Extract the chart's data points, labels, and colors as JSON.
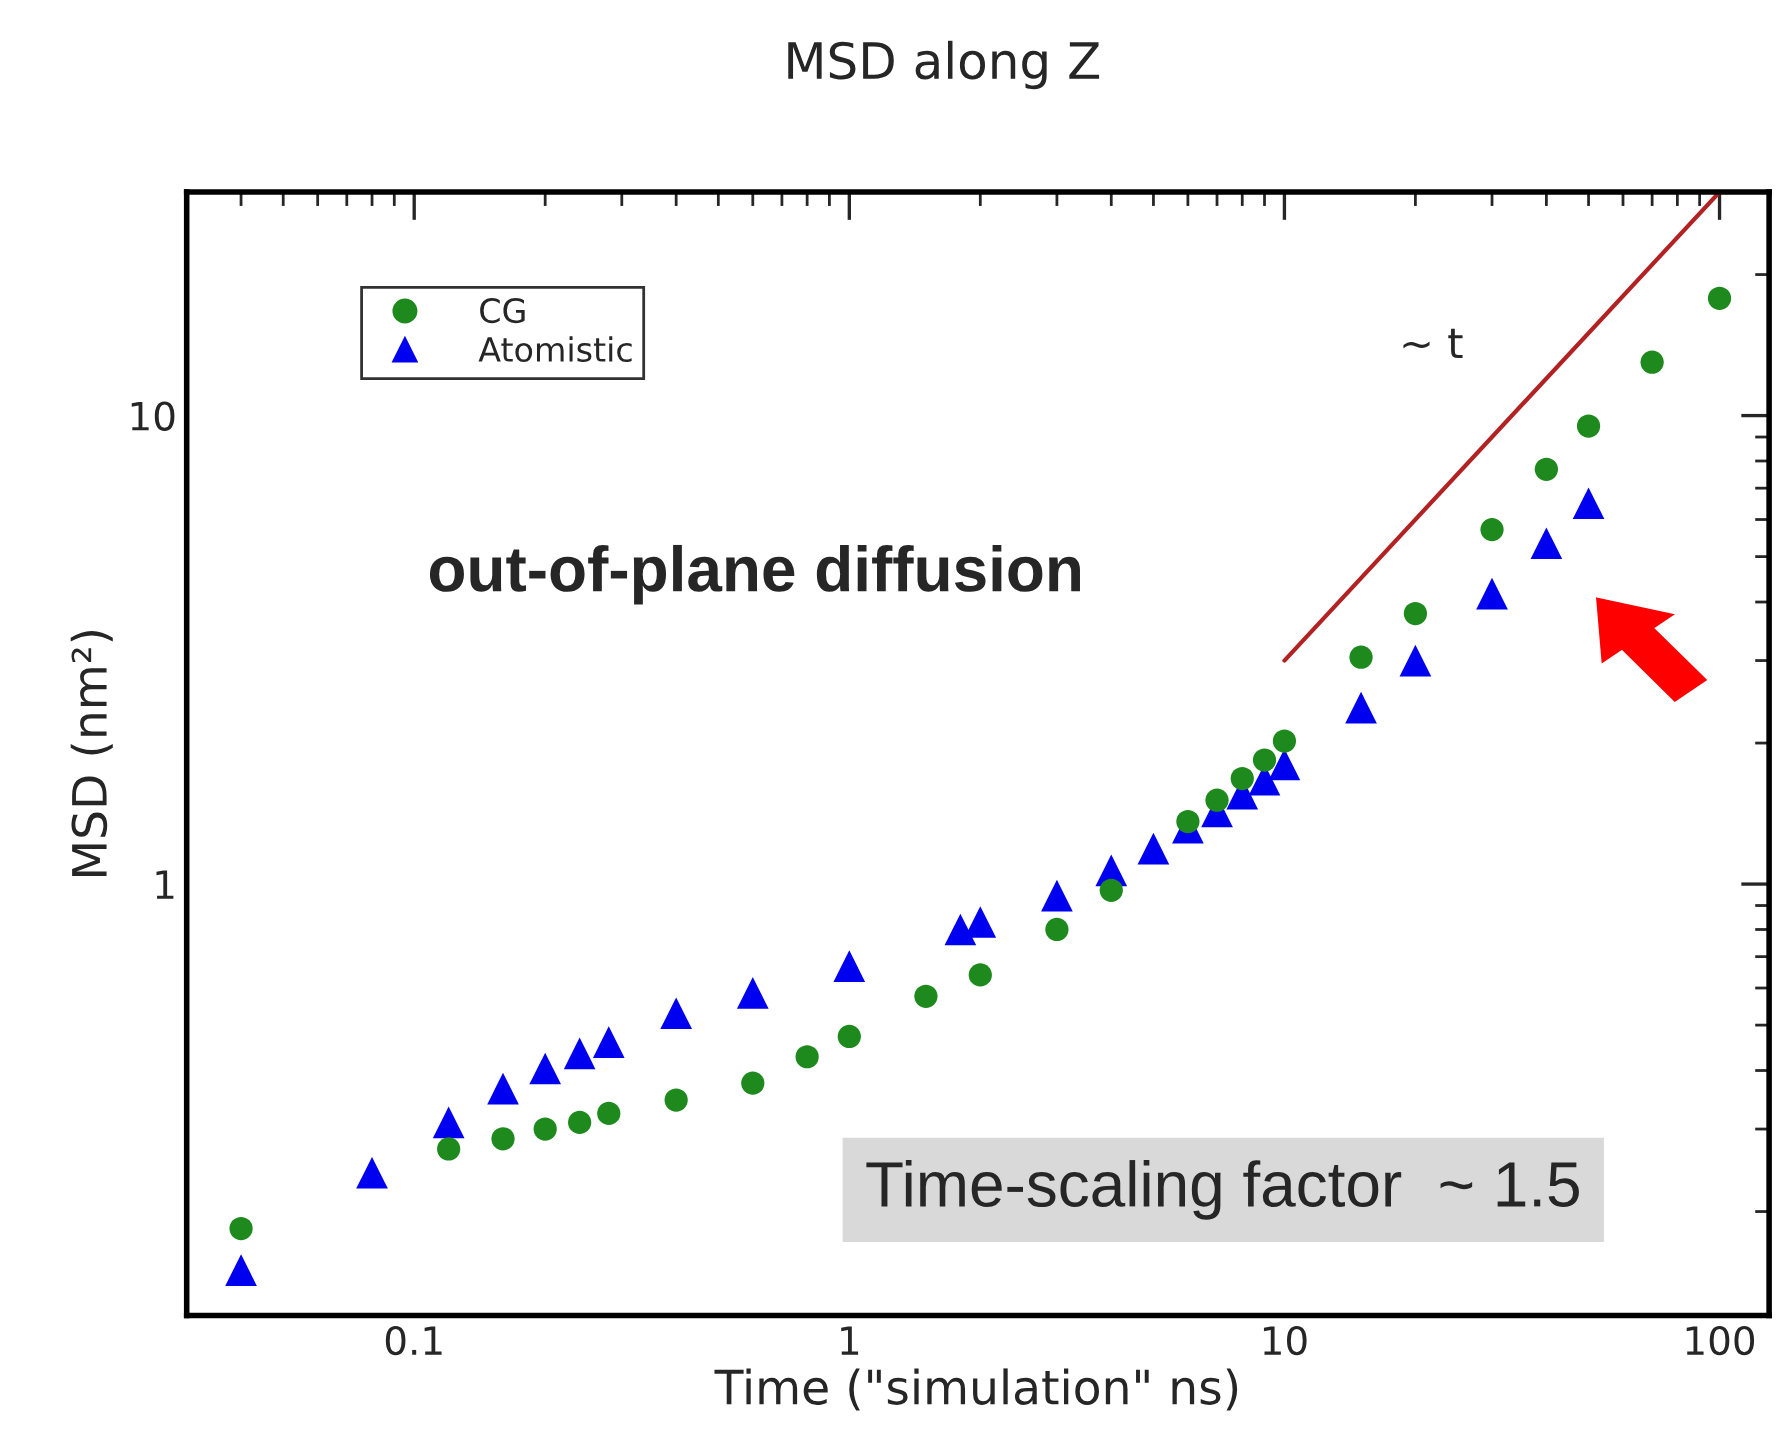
{
  "chart_data": {
    "type": "scatter",
    "title": "MSD along Z",
    "xlabel": "Time (\"simulation\" ns)",
    "ylabel": "MSD (nm²)",
    "log": "xy",
    "xlim": [
      0.03,
      130
    ],
    "ylim": [
      0.12,
      30
    ],
    "xticks": [
      0.1,
      1,
      10,
      100
    ],
    "yticks": [
      1,
      10
    ],
    "grid": false,
    "legend": "top left",
    "annotations": [
      "out-of-plane diffusion",
      "Time-scaling factor  ~ 1.5",
      "~ t"
    ],
    "series": [
      {
        "name": "CG",
        "marker": "circle",
        "color": "#1e8a1e",
        "x": [
          0.04,
          0.12,
          0.16,
          0.2,
          0.24,
          0.28,
          0.4,
          0.6,
          0.8,
          1.0,
          1.5,
          2.0,
          3,
          4,
          6,
          7,
          8,
          9,
          10,
          15,
          20,
          30,
          40,
          50,
          70,
          100
        ],
        "values": [
          0.184,
          0.272,
          0.286,
          0.3,
          0.31,
          0.324,
          0.346,
          0.376,
          0.428,
          0.473,
          0.576,
          0.64,
          0.8,
          0.97,
          1.36,
          1.51,
          1.68,
          1.84,
          2.02,
          3.05,
          3.78,
          5.71,
          7.68,
          9.5,
          13.0,
          17.8
        ]
      },
      {
        "name": "Atomistic",
        "marker": "triangle",
        "color": "#0000f0",
        "x": [
          0.04,
          0.08,
          0.12,
          0.16,
          0.2,
          0.24,
          0.28,
          0.4,
          0.6,
          1.0,
          1.8,
          2.0,
          3,
          4,
          5,
          6,
          7,
          8,
          9,
          10,
          15,
          20,
          30,
          40,
          50
        ],
        "values": [
          0.15,
          0.242,
          0.31,
          0.366,
          0.404,
          0.435,
          0.46,
          0.53,
          0.586,
          0.668,
          0.8,
          0.83,
          0.945,
          1.07,
          1.19,
          1.32,
          1.43,
          1.56,
          1.67,
          1.8,
          2.38,
          3.0,
          4.17,
          5.34,
          6.5
        ]
      },
      {
        "type": "line",
        "color": "#b22222",
        "x": [
          10,
          100
        ],
        "values": [
          3,
          30
        ]
      }
    ]
  }
}
